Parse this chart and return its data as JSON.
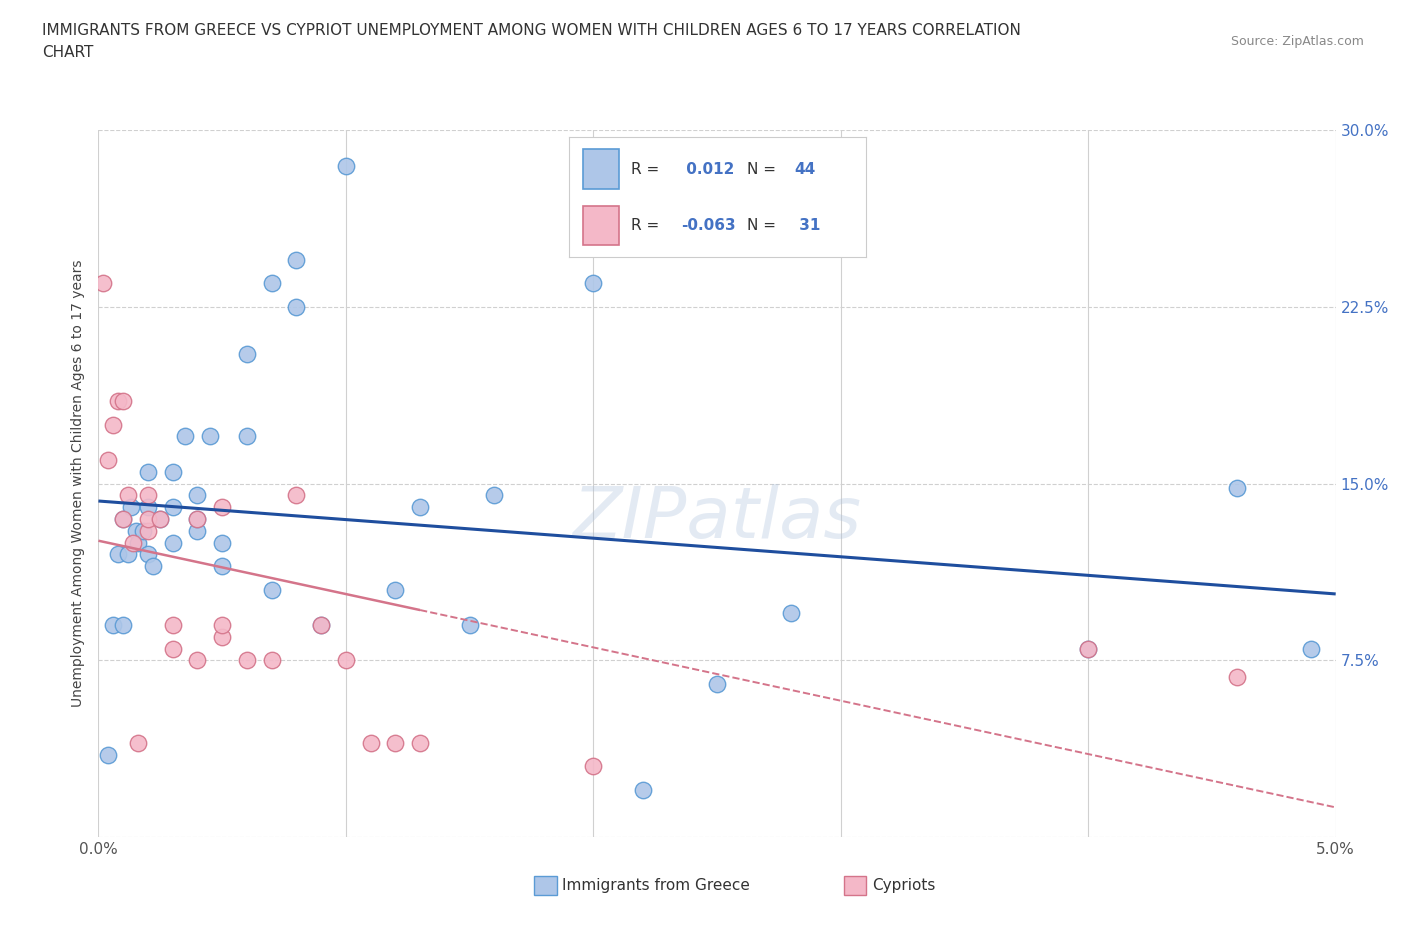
{
  "title_line1": "IMMIGRANTS FROM GREECE VS CYPRIOT UNEMPLOYMENT AMONG WOMEN WITH CHILDREN AGES 6 TO 17 YEARS CORRELATION",
  "title_line2": "CHART",
  "source": "Source: ZipAtlas.com",
  "ylabel": "Unemployment Among Women with Children Ages 6 to 17 years",
  "x_min": 0.0,
  "x_max": 0.05,
  "y_min": 0.0,
  "y_max": 0.3,
  "x_ticks": [
    0.0,
    0.01,
    0.02,
    0.03,
    0.04,
    0.05
  ],
  "y_ticks": [
    0.0,
    0.075,
    0.15,
    0.225,
    0.3
  ],
  "series1_name": "Immigrants from Greece",
  "series1_color": "#aec6e8",
  "series1_edge_color": "#5b9bd5",
  "series1_R": 0.012,
  "series1_N": 44,
  "series2_name": "Cypriots",
  "series2_color": "#f4b8c8",
  "series2_edge_color": "#d4748a",
  "series2_R": -0.063,
  "series2_N": 31,
  "legend_color": "#4472c4",
  "trendline1_color": "#1f4e9e",
  "trendline2_color": "#d4748a",
  "watermark": "ZIPatlas",
  "background_color": "#ffffff",
  "grid_color": "#d0d0d0",
  "series1_x": [
    0.0004,
    0.0006,
    0.0008,
    0.001,
    0.001,
    0.0012,
    0.0013,
    0.0015,
    0.0016,
    0.0018,
    0.002,
    0.002,
    0.002,
    0.0022,
    0.0025,
    0.003,
    0.003,
    0.003,
    0.0035,
    0.004,
    0.004,
    0.004,
    0.0045,
    0.005,
    0.005,
    0.006,
    0.006,
    0.007,
    0.007,
    0.008,
    0.008,
    0.009,
    0.01,
    0.012,
    0.013,
    0.015,
    0.016,
    0.02,
    0.022,
    0.025,
    0.028,
    0.04,
    0.046,
    0.049
  ],
  "series1_y": [
    0.035,
    0.09,
    0.12,
    0.09,
    0.135,
    0.12,
    0.14,
    0.13,
    0.125,
    0.13,
    0.12,
    0.14,
    0.155,
    0.115,
    0.135,
    0.125,
    0.14,
    0.155,
    0.17,
    0.13,
    0.135,
    0.145,
    0.17,
    0.115,
    0.125,
    0.17,
    0.205,
    0.105,
    0.235,
    0.225,
    0.245,
    0.09,
    0.285,
    0.105,
    0.14,
    0.09,
    0.145,
    0.235,
    0.02,
    0.065,
    0.095,
    0.08,
    0.148,
    0.08
  ],
  "series2_x": [
    0.0002,
    0.0004,
    0.0006,
    0.0008,
    0.001,
    0.001,
    0.0012,
    0.0014,
    0.0016,
    0.002,
    0.002,
    0.002,
    0.0025,
    0.003,
    0.003,
    0.004,
    0.004,
    0.005,
    0.005,
    0.005,
    0.006,
    0.007,
    0.008,
    0.009,
    0.01,
    0.011,
    0.012,
    0.013,
    0.02,
    0.04,
    0.046
  ],
  "series2_y": [
    0.235,
    0.16,
    0.175,
    0.185,
    0.185,
    0.135,
    0.145,
    0.125,
    0.04,
    0.13,
    0.135,
    0.145,
    0.135,
    0.08,
    0.09,
    0.075,
    0.135,
    0.085,
    0.09,
    0.14,
    0.075,
    0.075,
    0.145,
    0.09,
    0.075,
    0.04,
    0.04,
    0.04,
    0.03,
    0.08,
    0.068
  ]
}
